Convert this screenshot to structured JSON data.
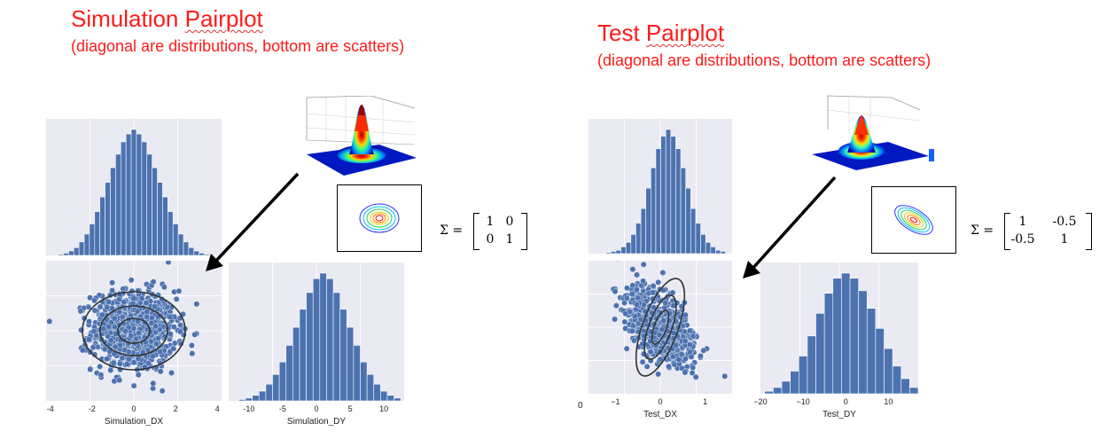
{
  "left": {
    "title_a": "Simulation ",
    "title_b": "Pairplot",
    "subtitle": "(diagonal are distributions, bottom are scatters)",
    "sigma": {
      "lhs": "Σ =",
      "m11": "1",
      "m12": "0",
      "m21": "0",
      "m22": "1"
    }
  },
  "right": {
    "title_a": "Test ",
    "title_b": "Pairplot",
    "subtitle": "(diagonal are distributions, bottom are scatters)",
    "sigma": {
      "lhs": "Σ =",
      "m11": "1",
      "m12": "-0.5",
      "m21": "-0.5",
      "m22": "1"
    },
    "stray_tick": "0"
  },
  "chart_data": [
    {
      "type": "bar",
      "panel": "simulation-dx-histogram",
      "x": [
        -3.5,
        -3.25,
        -3.0,
        -2.75,
        -2.5,
        -2.25,
        -2.0,
        -1.75,
        -1.5,
        -1.25,
        -1.0,
        -0.75,
        -0.5,
        -0.25,
        0.0,
        0.25,
        0.5,
        0.75,
        1.0,
        1.25,
        1.5,
        1.75,
        2.0,
        2.25,
        2.5,
        2.75,
        3.0,
        3.25,
        3.5
      ],
      "values": [
        1,
        2,
        4,
        7,
        12,
        19,
        28,
        39,
        52,
        65,
        78,
        90,
        101,
        108,
        112,
        108,
        101,
        90,
        78,
        65,
        52,
        39,
        28,
        19,
        12,
        7,
        4,
        2,
        1
      ],
      "xlim": [
        -4.2,
        4.2
      ]
    },
    {
      "type": "scatter",
      "panel": "simulation-dx-dy-scatter",
      "xlabel": "Simulation_DX",
      "xticks": [
        "-4",
        "-2",
        "0",
        "2",
        "4"
      ],
      "xlim": [
        -4.2,
        4.2
      ],
      "ylim": [
        -3.5,
        3.5
      ],
      "correlation": 0
    },
    {
      "type": "bar",
      "panel": "simulation-dy-histogram",
      "xlabel": "Simulation_DY",
      "xticks": [
        "-10",
        "-5",
        "0",
        "5",
        "10"
      ],
      "x": [
        -11,
        -10,
        -9,
        -8,
        -7,
        -6,
        -5,
        -4,
        -3,
        -2,
        -1,
        0,
        1,
        2,
        3,
        4,
        5,
        6,
        7,
        8,
        9,
        10,
        11,
        12
      ],
      "values": [
        1,
        2,
        4,
        7,
        12,
        19,
        28,
        40,
        53,
        66,
        78,
        88,
        92,
        88,
        78,
        66,
        53,
        40,
        28,
        19,
        12,
        7,
        4,
        2
      ],
      "xlim": [
        -13,
        13
      ]
    },
    {
      "type": "bar",
      "panel": "test-dx-histogram",
      "x": [
        -1.5,
        -1.375,
        -1.25,
        -1.125,
        -1.0,
        -0.875,
        -0.75,
        -0.625,
        -0.5,
        -0.375,
        -0.25,
        -0.125,
        0.0,
        0.125,
        0.25,
        0.375,
        0.5,
        0.625,
        0.75,
        0.875,
        1.0,
        1.125,
        1.25,
        1.375
      ],
      "values": [
        1,
        2,
        3,
        6,
        10,
        17,
        27,
        40,
        58,
        76,
        93,
        104,
        110,
        104,
        93,
        76,
        58,
        40,
        27,
        17,
        10,
        6,
        3,
        2
      ],
      "xlim": [
        -2,
        1.6
      ]
    },
    {
      "type": "scatter",
      "panel": "test-dx-dy-scatter",
      "xlabel": "Test_DX",
      "xticks": [
        "−1",
        "0",
        "1"
      ],
      "xlim": [
        -1.6,
        1.6
      ],
      "ylim": [
        -3.5,
        3.5
      ],
      "correlation": -0.5
    },
    {
      "type": "bar",
      "panel": "test-dy-histogram",
      "xlabel": "Test_DY",
      "xticks": [
        "−20",
        "−10",
        "0",
        "10"
      ],
      "x": [
        -18,
        -16,
        -14,
        -12,
        -10,
        -8,
        -6,
        -4,
        -2,
        0,
        2,
        4,
        6,
        8,
        10,
        12,
        14,
        16
      ],
      "values": [
        2,
        5,
        10,
        18,
        30,
        46,
        64,
        80,
        92,
        96,
        92,
        82,
        68,
        52,
        36,
        22,
        12,
        5
      ],
      "xlim": [
        -20,
        17
      ]
    }
  ]
}
